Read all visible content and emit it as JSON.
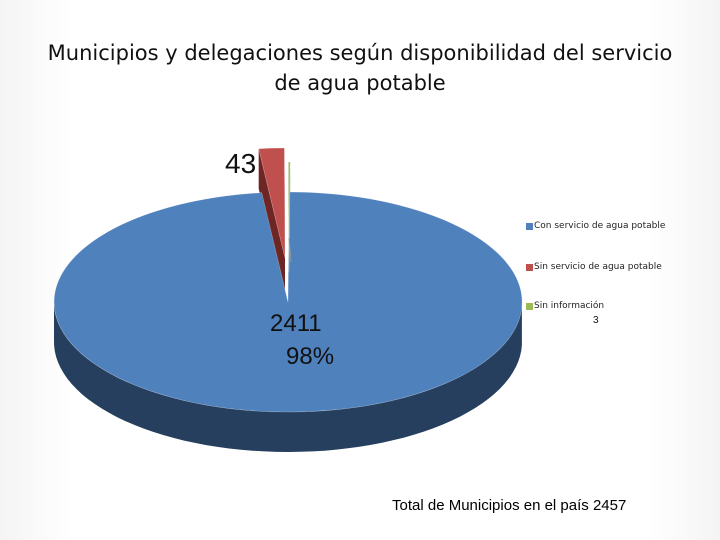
{
  "chart_data": {
    "type": "pie",
    "title": "Municipios y delegaciones según disponibilidad del servicio de agua potable",
    "categories": [
      "Con servicio de agua potable",
      "Sin servicio de agua potable",
      "Sin información"
    ],
    "values": [
      2411,
      43,
      3
    ],
    "labels": {
      "con_count": "2411",
      "con_pct": "98%",
      "sin_count": "43",
      "info_count": "3"
    },
    "colors": [
      "#4f81bd",
      "#c0504d",
      "#9bbb59"
    ],
    "shadow_colors": [
      "#263f5f",
      "#6e2624",
      "#4d5d2c"
    ],
    "legend_position": "right",
    "total_note": "Total de Municipios en el país  2457"
  }
}
